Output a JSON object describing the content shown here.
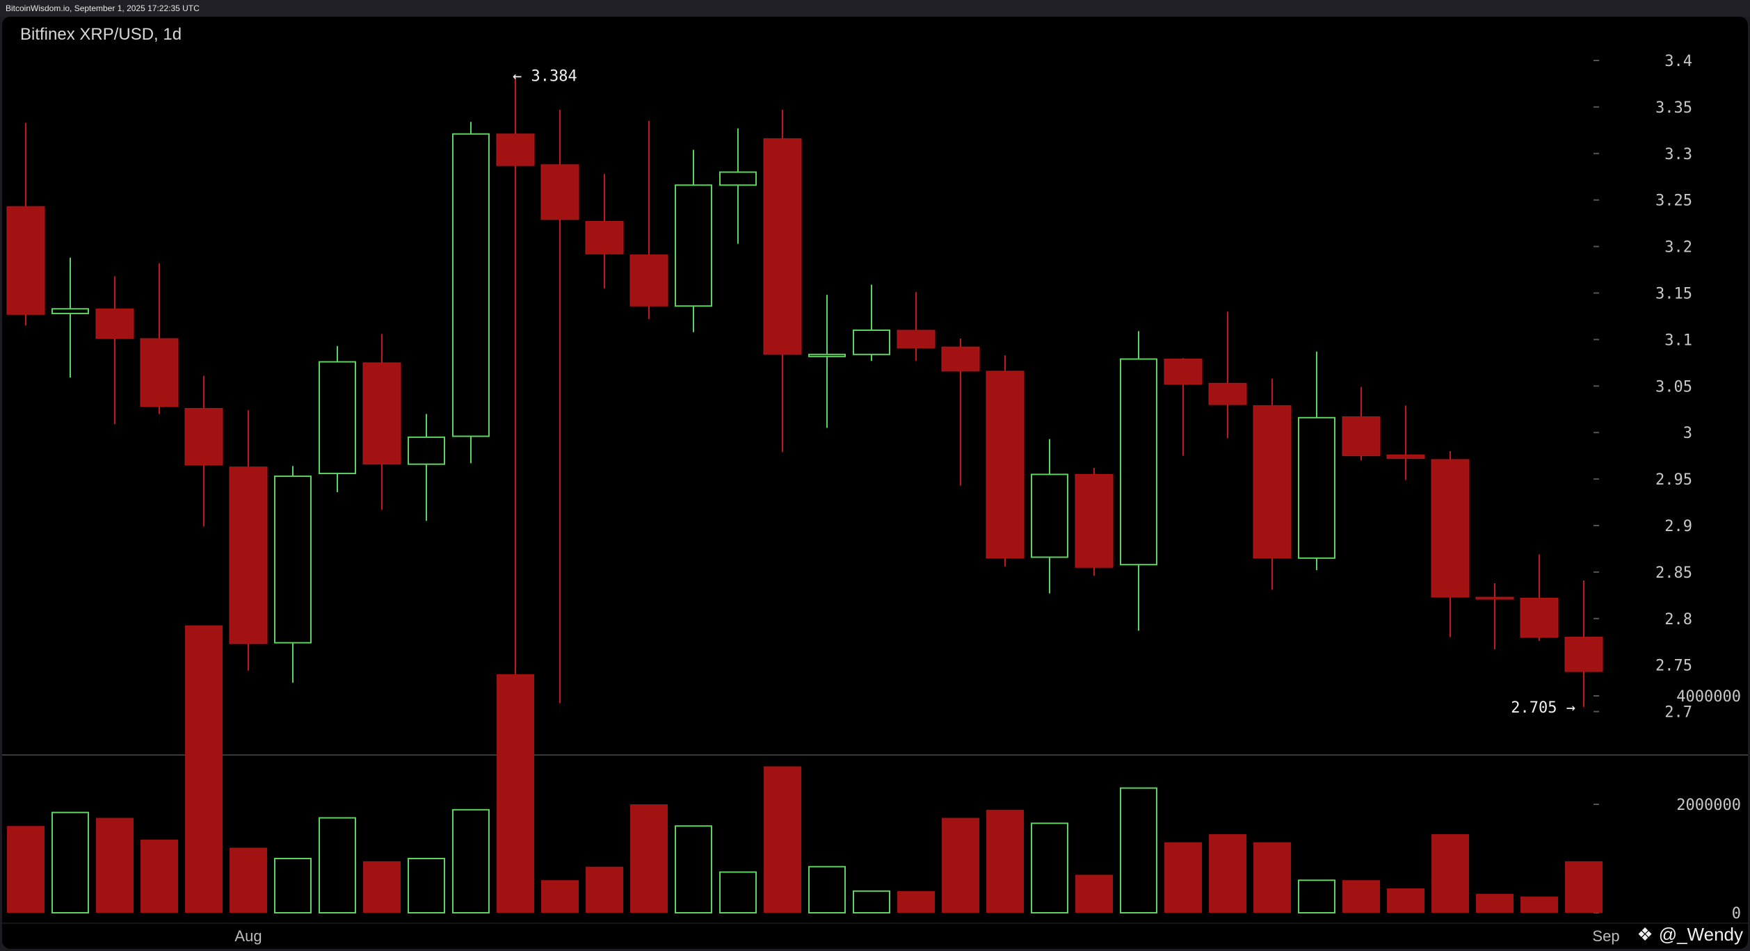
{
  "header": {
    "stamp": "BitcoinWisdom.io, September 1, 2025 17:22:35 UTC"
  },
  "watermark": {
    "text": "@_Wendy",
    "icon": "diamond-logo-icon"
  },
  "colors": {
    "up": "#5fd35f",
    "down": "#a31212",
    "background": "#000000",
    "axis": "#c8c8c8"
  },
  "chart_data": {
    "type": "candlestick",
    "title": "Bitfinex XRP/USD, 1d",
    "price_axis": {
      "ylim": [
        2.68,
        3.44
      ],
      "ticks": [
        "3.4",
        "3.35",
        "3.3",
        "3.25",
        "3.2",
        "3.15",
        "3.1",
        "3.05",
        "3",
        "2.95",
        "2.9",
        "2.85",
        "2.8",
        "2.75",
        "2.7"
      ]
    },
    "volume_axis": {
      "ylim": [
        0,
        5300000
      ],
      "ticks": [
        "4000000",
        "2000000",
        "0"
      ]
    },
    "x_labels": [
      {
        "label": "Aug",
        "index": 5
      },
      {
        "label": "Sep",
        "index": 35.5
      }
    ],
    "annotations": {
      "high_label": "← 3.384",
      "high_value": 3.384,
      "high_index": 11,
      "low_label": "2.705 →",
      "low_value": 2.705,
      "low_index": 35
    },
    "candles": [
      {
        "o": 3.243,
        "h": 3.333,
        "l": 3.115,
        "c": 3.127,
        "v": 1600000
      },
      {
        "o": 3.128,
        "h": 3.188,
        "l": 3.059,
        "c": 3.133,
        "v": 1850000
      },
      {
        "o": 3.133,
        "h": 3.168,
        "l": 3.009,
        "c": 3.101,
        "v": 1750000
      },
      {
        "o": 3.101,
        "h": 3.182,
        "l": 3.02,
        "c": 3.028,
        "v": 1350000
      },
      {
        "o": 3.026,
        "h": 3.061,
        "l": 2.899,
        "c": 2.965,
        "v": 5300000
      },
      {
        "o": 2.963,
        "h": 3.024,
        "l": 2.744,
        "c": 2.773,
        "v": 1200000
      },
      {
        "o": 2.774,
        "h": 2.964,
        "l": 2.731,
        "c": 2.953,
        "v": 1000000
      },
      {
        "o": 2.956,
        "h": 3.093,
        "l": 2.936,
        "c": 3.076,
        "v": 1750000
      },
      {
        "o": 3.075,
        "h": 3.106,
        "l": 2.917,
        "c": 2.966,
        "v": 950000
      },
      {
        "o": 2.966,
        "h": 3.02,
        "l": 2.905,
        "c": 2.995,
        "v": 1000000
      },
      {
        "o": 2.996,
        "h": 3.334,
        "l": 2.967,
        "c": 3.321,
        "v": 1900000
      },
      {
        "o": 3.321,
        "h": 3.384,
        "l": 2.706,
        "c": 3.287,
        "v": 4400000
      },
      {
        "o": 3.288,
        "h": 3.347,
        "l": 2.709,
        "c": 3.229,
        "v": 600000
      },
      {
        "o": 3.227,
        "h": 3.278,
        "l": 3.155,
        "c": 3.192,
        "v": 850000
      },
      {
        "o": 3.191,
        "h": 3.335,
        "l": 3.122,
        "c": 3.136,
        "v": 2000000
      },
      {
        "o": 3.136,
        "h": 3.304,
        "l": 3.108,
        "c": 3.266,
        "v": 1600000
      },
      {
        "o": 3.266,
        "h": 3.327,
        "l": 3.203,
        "c": 3.28,
        "v": 750000
      },
      {
        "o": 3.316,
        "h": 3.347,
        "l": 2.979,
        "c": 3.084,
        "v": 2700000
      },
      {
        "o": 3.083,
        "h": 3.148,
        "l": 3.005,
        "c": 3.084,
        "v": 850000
      },
      {
        "o": 3.084,
        "h": 3.159,
        "l": 3.077,
        "c": 3.11,
        "v": 400000
      },
      {
        "o": 3.11,
        "h": 3.151,
        "l": 3.077,
        "c": 3.091,
        "v": 400000
      },
      {
        "o": 3.092,
        "h": 3.101,
        "l": 2.943,
        "c": 3.066,
        "v": 1750000
      },
      {
        "o": 3.066,
        "h": 3.083,
        "l": 2.856,
        "c": 2.865,
        "v": 1900000
      },
      {
        "o": 2.866,
        "h": 2.993,
        "l": 2.827,
        "c": 2.955,
        "v": 1650000
      },
      {
        "o": 2.955,
        "h": 2.962,
        "l": 2.846,
        "c": 2.855,
        "v": 700000
      },
      {
        "o": 2.858,
        "h": 3.109,
        "l": 2.787,
        "c": 3.079,
        "v": 2300000
      },
      {
        "o": 3.079,
        "h": 3.08,
        "l": 2.975,
        "c": 3.052,
        "v": 1300000
      },
      {
        "o": 3.053,
        "h": 3.13,
        "l": 2.994,
        "c": 3.03,
        "v": 1450000
      },
      {
        "o": 3.029,
        "h": 3.058,
        "l": 2.831,
        "c": 2.865,
        "v": 1300000
      },
      {
        "o": 2.865,
        "h": 3.087,
        "l": 2.852,
        "c": 3.016,
        "v": 600000
      },
      {
        "o": 3.017,
        "h": 3.049,
        "l": 2.97,
        "c": 2.975,
        "v": 600000
      },
      {
        "o": 2.976,
        "h": 3.029,
        "l": 2.949,
        "c": 2.972,
        "v": 450000
      },
      {
        "o": 2.971,
        "h": 2.98,
        "l": 2.78,
        "c": 2.823,
        "v": 1450000
      },
      {
        "o": 2.823,
        "h": 2.838,
        "l": 2.767,
        "c": 2.822,
        "v": 350000
      },
      {
        "o": 2.822,
        "h": 2.869,
        "l": 2.776,
        "c": 2.78,
        "v": 300000
      },
      {
        "o": 2.78,
        "h": 2.841,
        "l": 2.705,
        "c": 2.743,
        "v": 950000
      }
    ]
  }
}
